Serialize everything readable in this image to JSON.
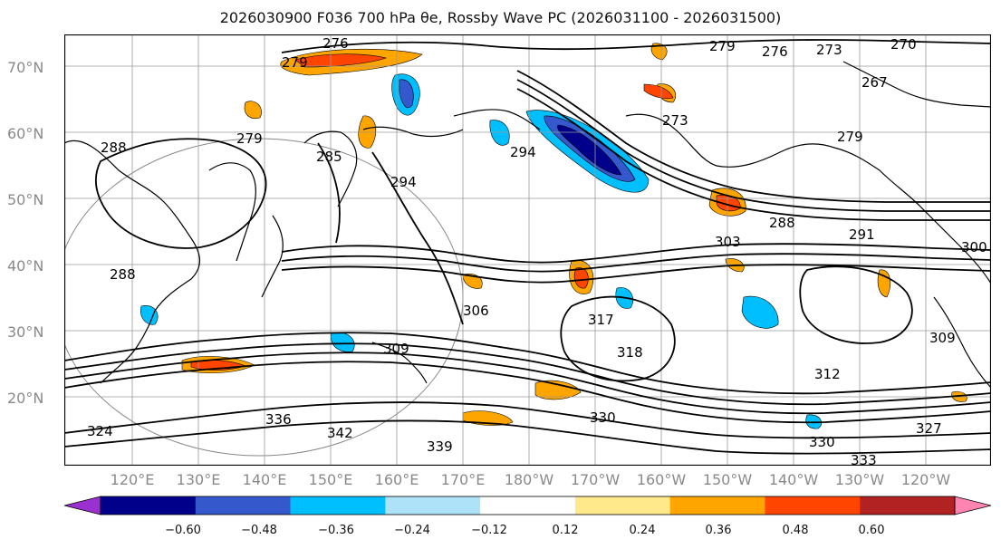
{
  "title": "2026030900 F036 700 hPa θe, Rossby Wave PC (2026031100 - 2026031500)",
  "lat_labels": [
    "70°N",
    "60°N",
    "50°N",
    "40°N",
    "30°N",
    "20°N"
  ],
  "lon_labels": [
    "120°E",
    "130°E",
    "140°E",
    "150°E",
    "160°E",
    "170°E",
    "180°W",
    "170°W",
    "160°W",
    "150°W",
    "140°W",
    "130°W",
    "120°W"
  ],
  "contour_labels": [
    "276",
    "279",
    "276",
    "273",
    "270",
    "267",
    "273",
    "279",
    "288",
    "279",
    "285",
    "294",
    "294",
    "288",
    "303",
    "291",
    "300",
    "288",
    "279",
    "306",
    "317",
    "318",
    "309",
    "312",
    "309",
    "342",
    "330",
    "336",
    "327",
    "330",
    "333",
    "324",
    "339"
  ],
  "colorbar": {
    "ticks": [
      "−0.60",
      "−0.48",
      "−0.36",
      "−0.24",
      "−0.12",
      "0.12",
      "0.24",
      "0.36",
      "0.48",
      "0.60"
    ],
    "colors": [
      "#9b30d0",
      "#00008b",
      "#3558cc",
      "#00bfff",
      "#ade2f8",
      "#ffffff",
      "#ffe98a",
      "#ffa500",
      "#ff4500",
      "#b22222",
      "#ff85b0"
    ]
  },
  "map_colors": {
    "land_line": "#000000",
    "contour": "#000000",
    "grid": "#9a9a9a"
  }
}
